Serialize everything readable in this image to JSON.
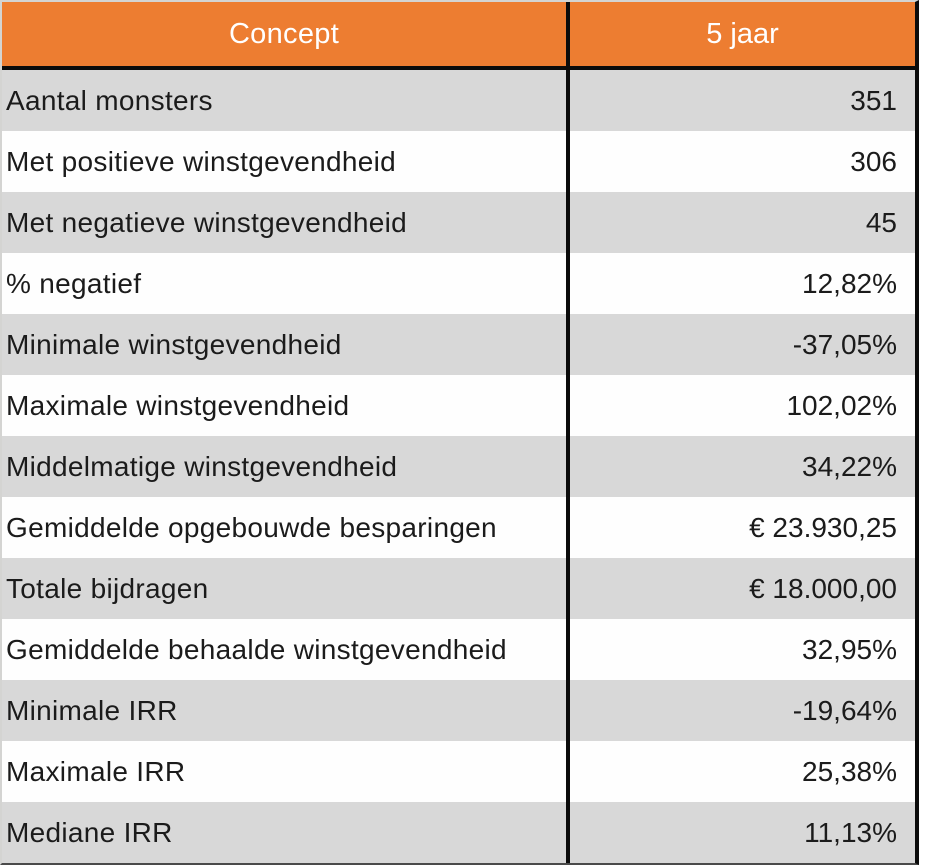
{
  "table": {
    "header": {
      "concept": "Concept",
      "period": "5 jaar"
    },
    "rows": [
      {
        "label": "Aantal monsters",
        "value": "351"
      },
      {
        "label": "Met positieve winstgevendheid",
        "value": "306"
      },
      {
        "label": "Met negatieve winstgevendheid",
        "value": "45"
      },
      {
        "label": "% negatief",
        "value": "12,82%"
      },
      {
        "label": "Minimale winstgevendheid",
        "value": "-37,05%"
      },
      {
        "label": "Maximale winstgevendheid",
        "value": "102,02%"
      },
      {
        "label": "Middelmatige winstgevendheid",
        "value": "34,22%"
      },
      {
        "label": "Gemiddelde opgebouwde besparingen",
        "value": "€ 23.930,25"
      },
      {
        "label": "Totale bijdragen",
        "value": "€ 18.000,00"
      },
      {
        "label": "Gemiddelde behaalde winstgevendheid",
        "value": "32,95%"
      },
      {
        "label": "Minimale IRR",
        "value": "-19,64%"
      },
      {
        "label": "Maximale IRR",
        "value": "25,38%"
      },
      {
        "label": "Mediane IRR",
        "value": "11,13%"
      }
    ]
  },
  "colors": {
    "header_background": "#ED7D31",
    "header_text": "#FFFFFF",
    "row_alt_background": "#D8D8D8",
    "row_background": "#FEFEFE",
    "divider": "#0B0B0B",
    "body_text": "#1B1B1B"
  },
  "chart_data": {
    "type": "table",
    "columns": [
      "Concept",
      "5 jaar"
    ],
    "rows": [
      [
        "Aantal monsters",
        "351"
      ],
      [
        "Met positieve winstgevendheid",
        "306"
      ],
      [
        "Met negatieve winstgevendheid",
        "45"
      ],
      [
        "% negatief",
        "12,82%"
      ],
      [
        "Minimale winstgevendheid",
        "-37,05%"
      ],
      [
        "Maximale winstgevendheid",
        "102,02%"
      ],
      [
        "Middelmatige winstgevendheid",
        "34,22%"
      ],
      [
        "Gemiddelde opgebouwde besparingen",
        "€ 23.930,25"
      ],
      [
        "Totale bijdragen",
        "€ 18.000,00"
      ],
      [
        "Gemiddelde behaalde winstgevendheid",
        "32,95%"
      ],
      [
        "Minimale IRR",
        "-19,64%"
      ],
      [
        "Maximale IRR",
        "25,38%"
      ],
      [
        "Mediane IRR",
        "11,13%"
      ]
    ]
  }
}
